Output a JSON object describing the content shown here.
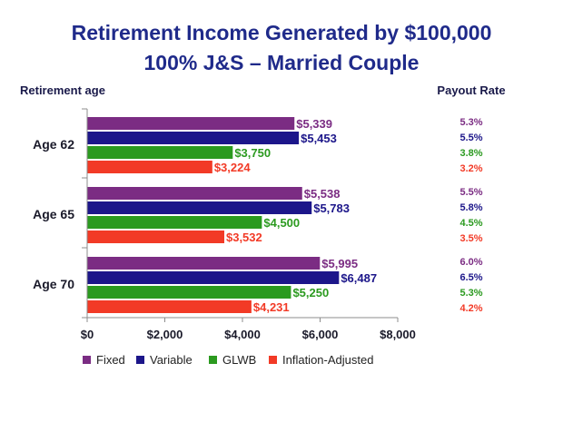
{
  "chart_data": {
    "type": "bar",
    "orientation": "horizontal",
    "title": "Retirement Income Generated by $100,000",
    "subtitle": "100% J&S – Married Couple",
    "ylabel": "Retirement age",
    "side_label": "Payout Rate",
    "categories": [
      "Age 62",
      "Age 65",
      "Age 70"
    ],
    "series": [
      {
        "name": "Fixed",
        "color": "#7b2c83",
        "values": [
          5339,
          5538,
          5995
        ],
        "labels": [
          "$5,339",
          "$5,538",
          "$5,995"
        ],
        "rates": [
          "5.3%",
          "5.5%",
          "6.0%"
        ]
      },
      {
        "name": "Variable",
        "color": "#1c168a",
        "values": [
          5453,
          5783,
          6487
        ],
        "labels": [
          "$5,453",
          "$5,783",
          "$6,487"
        ],
        "rates": [
          "5.5%",
          "5.8%",
          "6.5%"
        ]
      },
      {
        "name": "GLWB",
        "color": "#2b9a1f",
        "values": [
          3750,
          4500,
          5250
        ],
        "labels": [
          "$3,750",
          "$4,500",
          "$5,250"
        ],
        "rates": [
          "3.8%",
          "4.5%",
          "5.3%"
        ]
      },
      {
        "name": "Inflation-Adjusted",
        "color": "#f23a26",
        "values": [
          3224,
          3532,
          4231
        ],
        "labels": [
          "$3,224",
          "$3,532",
          "$4,231"
        ],
        "rates": [
          "3.2%",
          "3.5%",
          "4.2%"
        ]
      }
    ],
    "xlim": [
      0,
      8000
    ],
    "xticks": [
      0,
      2000,
      4000,
      6000,
      8000
    ],
    "xtick_labels": [
      "$0",
      "$2,000",
      "$4,000",
      "$6,000",
      "$8,000"
    ],
    "legend_position": "bottom-left",
    "grid": false
  }
}
